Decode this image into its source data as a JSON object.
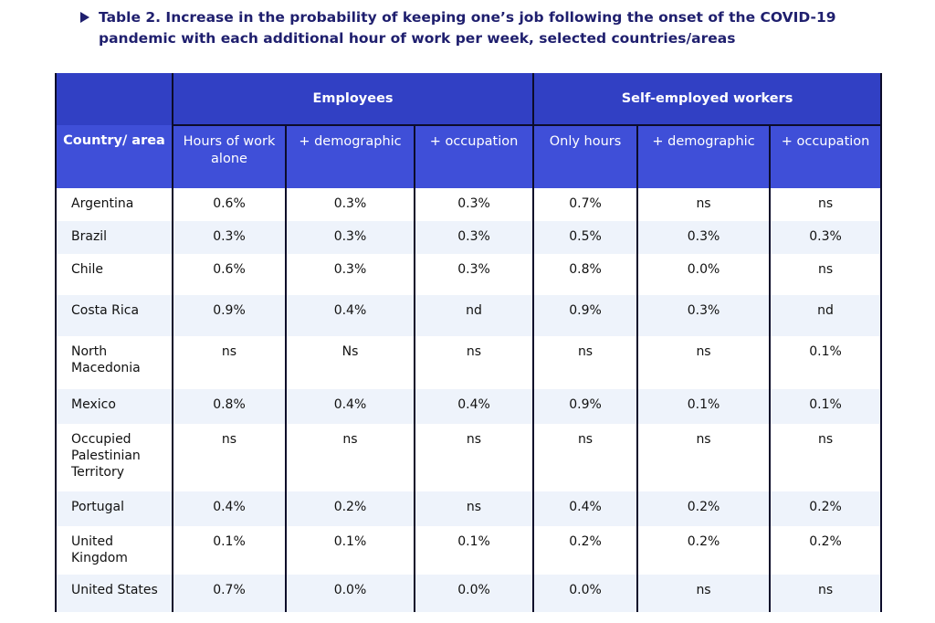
{
  "caption": {
    "title_line1": "Table 2. Increase in the probability of keeping one’s job following the onset of the COVID-19",
    "title_line2": "pandemic with each additional hour of work per week, selected countries/areas"
  },
  "table": {
    "group_headers": {
      "employees": "Employees",
      "self_employed": "Self-employed workers"
    },
    "columns": [
      "Country/ area",
      "Hours of work alone",
      "+ demographic",
      "+ occupation",
      "Only hours",
      "+ demographic",
      "+ occupation"
    ],
    "rows": [
      {
        "country": "Argentina",
        "values": [
          "0.6%",
          "0.3%",
          "0.3%",
          "0.7%",
          "ns",
          "ns"
        ]
      },
      {
        "country": "Brazil",
        "values": [
          "0.3%",
          "0.3%",
          "0.3%",
          "0.5%",
          "0.3%",
          "0.3%"
        ]
      },
      {
        "country": "Chile",
        "values": [
          "0.6%",
          "0.3%",
          "0.3%",
          "0.8%",
          "0.0%",
          "ns"
        ]
      },
      {
        "country": "Costa Rica",
        "values": [
          "0.9%",
          "0.4%",
          "nd",
          "0.9%",
          "0.3%",
          "nd"
        ]
      },
      {
        "country": "North Macedonia",
        "values": [
          "ns",
          "Ns",
          "ns",
          "ns",
          "ns",
          "0.1%"
        ]
      },
      {
        "country": "Mexico",
        "values": [
          "0.8%",
          "0.4%",
          "0.4%",
          "0.9%",
          "0.1%",
          "0.1%"
        ]
      },
      {
        "country": "Occupied Palestinian Territory",
        "values": [
          "ns",
          "ns",
          "ns",
          "ns",
          "ns",
          "ns"
        ]
      },
      {
        "country": "Portugal",
        "values": [
          "0.4%",
          "0.2%",
          "ns",
          "0.4%",
          "0.2%",
          "0.2%"
        ]
      },
      {
        "country": "United Kingdom",
        "values": [
          "0.1%",
          "0.1%",
          "0.1%",
          "0.2%",
          "0.2%",
          "0.2%"
        ]
      },
      {
        "country": "United States",
        "values": [
          "0.7%",
          "0.0%",
          "0.0%",
          "0.0%",
          "ns",
          "ns"
        ]
      }
    ]
  },
  "colors": {
    "header_group": "#3140c4",
    "header_sub": "#3f4fd8",
    "caption_text": "#1f1f6e",
    "row_alt": "#eef3fb"
  }
}
